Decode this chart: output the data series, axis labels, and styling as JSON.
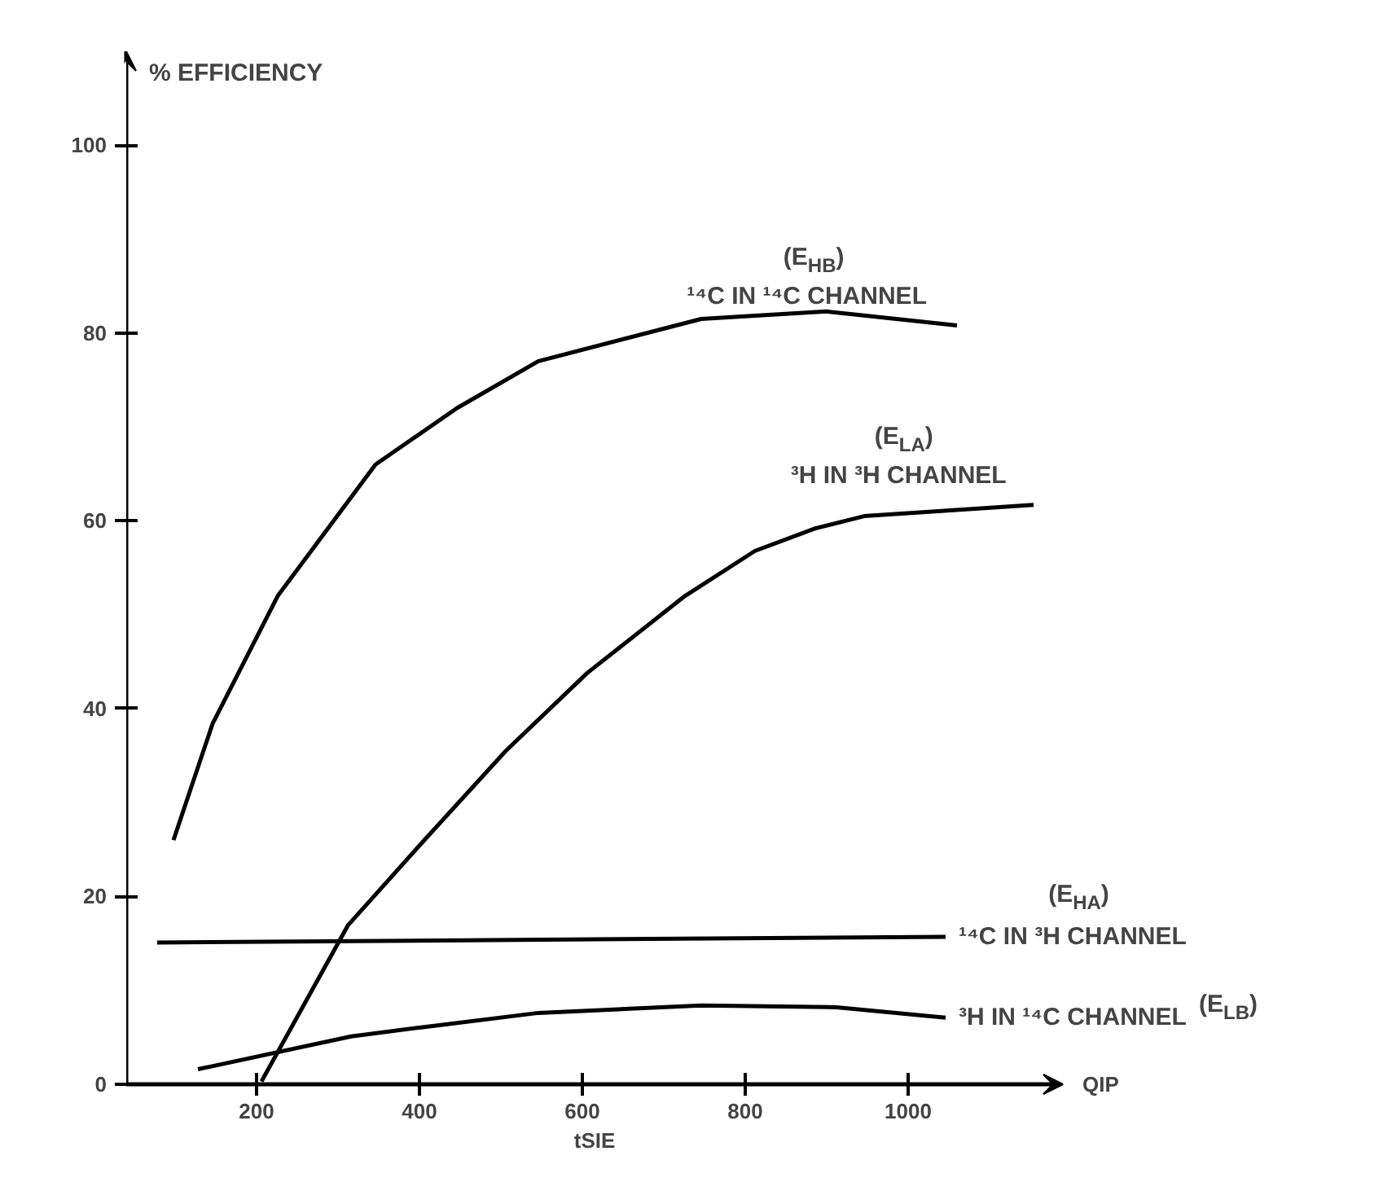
{
  "chart_data": {
    "type": "line",
    "xlabel": "tSIE",
    "ylabel": "% EFFICIENCY",
    "xlim": [
      40,
      1190
    ],
    "ylim": [
      0,
      110
    ],
    "xticks": [
      200,
      400,
      600,
      800,
      1000
    ],
    "yticks": [
      0,
      20,
      40,
      60,
      80,
      100
    ],
    "grid": false,
    "legend": false,
    "marker": "none",
    "line_style": "solid",
    "series": [
      {
        "name": "¹⁴C IN ¹⁴C CHANNEL",
        "color": "#000000",
        "x": [
          98,
          146,
          226,
          346,
          446,
          546,
          746,
          900,
          1060
        ],
        "values": [
          26,
          38.4,
          52,
          66,
          72,
          77,
          81.5,
          82.3,
          80.8
        ]
      },
      {
        "name": "³H IN ³H CHANNEL",
        "color": "#000000",
        "x": [
          206,
          312,
          406,
          506,
          606,
          726,
          812,
          886,
          946,
          1154
        ],
        "values": [
          0.3,
          16.9,
          26,
          35.5,
          43.8,
          52,
          56.8,
          59.2,
          60.5,
          61.7
        ]
      },
      {
        "name": "¹⁴C IN ³H CHANNEL",
        "color": "#000000",
        "x": [
          78,
          1046
        ],
        "values": [
          15.1,
          15.7
        ]
      },
      {
        "name": "³H IN ¹⁴C CHANNEL",
        "color": "#000000",
        "x": [
          128,
          316,
          406,
          546,
          746,
          912,
          1046
        ],
        "values": [
          1.6,
          5.1,
          6.1,
          7.6,
          8.4,
          8.2,
          7.1
        ]
      }
    ],
    "annotations": [
      "(E$_{HB}$)",
      "(E$_{LA}$)",
      "(E$_{HA}$)",
      "(E$_{LB}$)",
      "QIP"
    ]
  }
}
